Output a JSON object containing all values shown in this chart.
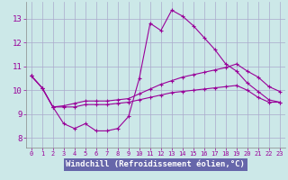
{
  "xlabel": "Windchill (Refroidissement éolien,°C)",
  "background_color": "#cce8e8",
  "grid_color": "#aaaacc",
  "line_color": "#990099",
  "xlabel_bg": "#6666aa",
  "xlabel_fg": "#ffffff",
  "x_ticks": [
    0,
    1,
    2,
    3,
    4,
    5,
    6,
    7,
    8,
    9,
    10,
    11,
    12,
    13,
    14,
    15,
    16,
    17,
    18,
    19,
    20,
    21,
    22,
    23
  ],
  "y_ticks": [
    8,
    9,
    10,
    11,
    12,
    13
  ],
  "ylim": [
    7.6,
    13.7
  ],
  "xlim": [
    -0.5,
    23.5
  ],
  "series": [
    [
      10.6,
      10.1,
      9.3,
      8.6,
      8.4,
      8.6,
      8.3,
      8.3,
      8.4,
      8.9,
      10.5,
      12.8,
      12.5,
      13.35,
      13.1,
      12.7,
      12.2,
      11.7,
      11.1,
      10.8,
      10.3,
      9.95,
      9.6,
      9.5
    ],
    [
      10.6,
      10.1,
      9.3,
      9.35,
      9.45,
      9.55,
      9.55,
      9.55,
      9.6,
      9.65,
      9.85,
      10.05,
      10.25,
      10.4,
      10.55,
      10.65,
      10.75,
      10.85,
      10.95,
      11.1,
      10.8,
      10.55,
      10.15,
      9.95
    ],
    [
      10.6,
      10.1,
      9.3,
      9.3,
      9.3,
      9.4,
      9.4,
      9.4,
      9.45,
      9.5,
      9.6,
      9.7,
      9.8,
      9.9,
      9.95,
      10.0,
      10.05,
      10.1,
      10.15,
      10.2,
      10.0,
      9.7,
      9.5,
      9.5
    ]
  ]
}
